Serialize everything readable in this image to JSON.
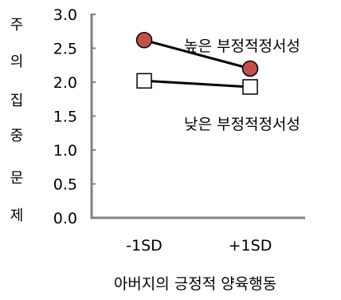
{
  "chart_data": {
    "type": "line",
    "categories": [
      "-1SD",
      "+1SD"
    ],
    "ylim": [
      0.0,
      3.0
    ],
    "yticks": [
      "0.0",
      "0.5",
      "1.0",
      "1.5",
      "2.0",
      "2.5",
      "3.0"
    ],
    "ylabel_chars": [
      "주",
      "의",
      "집",
      "중",
      "문",
      "제"
    ],
    "xlabel": "아버지의 긍정적 양육행동",
    "series": [
      {
        "name": "높은 부정적정서성",
        "values": [
          2.62,
          2.2
        ],
        "marker": "circle",
        "marker_color": "#c0504d"
      },
      {
        "name": "낮은 부정적정서성",
        "values": [
          2.02,
          1.93
        ],
        "marker": "square",
        "marker_color": "#ffffff"
      }
    ],
    "axis_color": "#808080",
    "line_color": "#000000"
  }
}
